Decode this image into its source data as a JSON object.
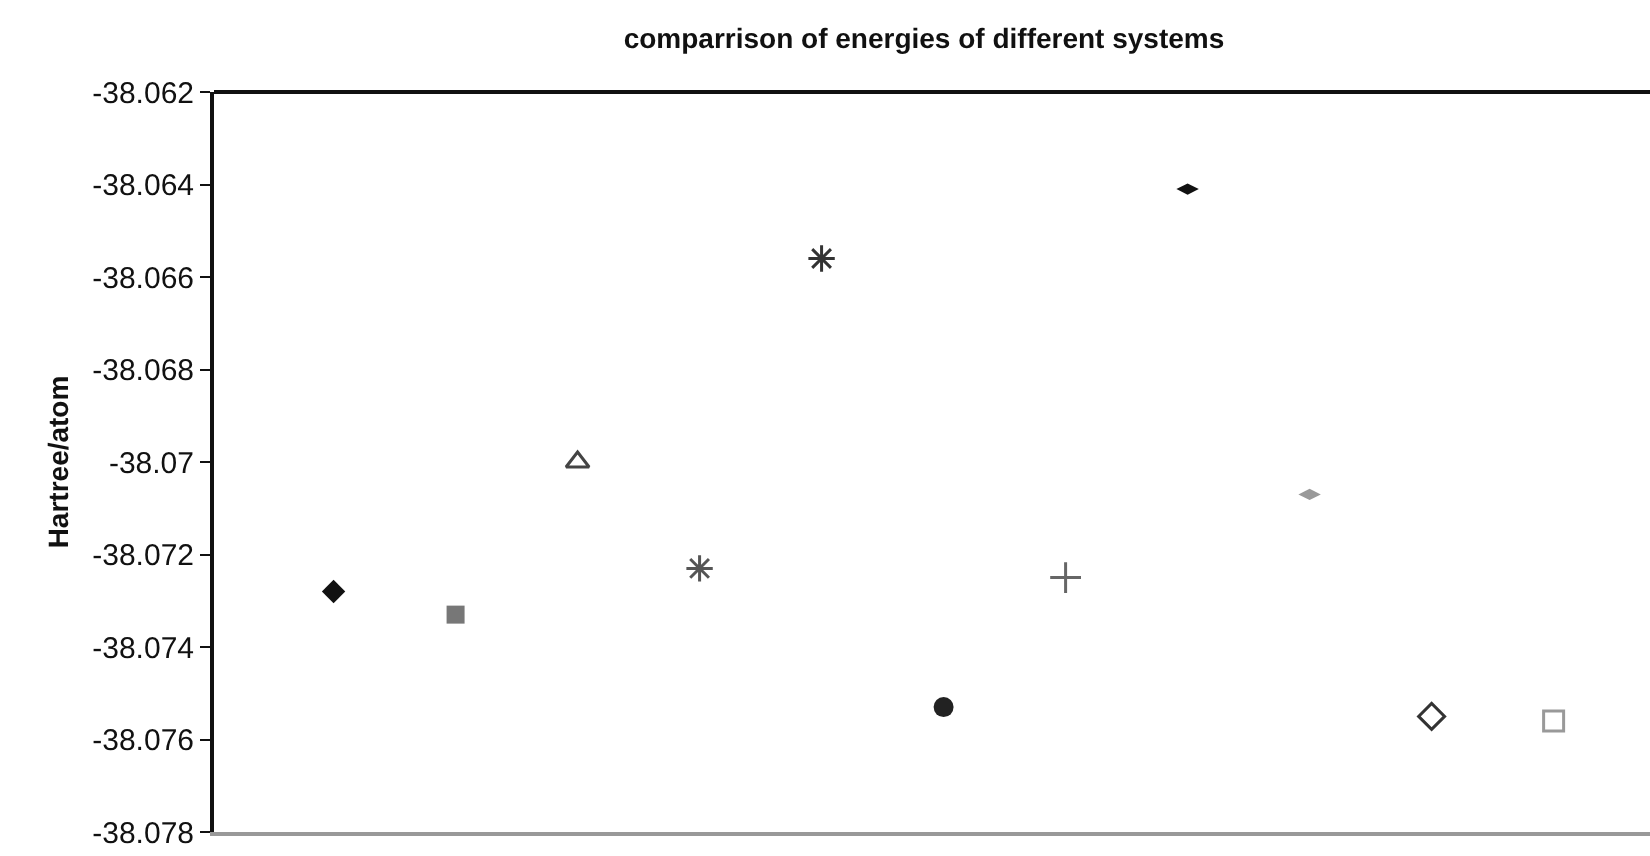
{
  "chart_data": {
    "type": "scatter",
    "title": "comparrison of energies of different systems",
    "ylabel": "Hartree/atom",
    "categories": [
      null,
      null,
      null,
      null,
      null,
      null,
      null,
      null,
      null,
      null,
      null
    ],
    "series": [
      {
        "color": "#111111",
        "marker": "diamond",
        "values": [
          -38.0728,
          null,
          null,
          null,
          null,
          null,
          null,
          null,
          null,
          null,
          null
        ]
      },
      {
        "color": "#777777",
        "marker": "square",
        "values": [
          null,
          -38.0733,
          null,
          null,
          null,
          null,
          null,
          null,
          null,
          null,
          null
        ]
      },
      {
        "color": "#444444",
        "marker": "triangle-open",
        "values": [
          null,
          null,
          -38.07,
          null,
          null,
          null,
          null,
          null,
          null,
          null,
          null
        ]
      },
      {
        "color": "#555555",
        "marker": "cross",
        "values": [
          null,
          null,
          null,
          -38.0723,
          null,
          null,
          null,
          null,
          null,
          null,
          null
        ]
      },
      {
        "color": "#333333",
        "marker": "cross",
        "values": [
          null,
          null,
          null,
          null,
          -38.0656,
          null,
          null,
          null,
          null,
          null,
          null
        ]
      },
      {
        "color": "#222222",
        "marker": "circle",
        "values": [
          null,
          null,
          null,
          null,
          null,
          -38.0753,
          null,
          null,
          null,
          null,
          null
        ]
      },
      {
        "color": "#666666",
        "marker": "cross-thin",
        "values": [
          null,
          null,
          null,
          null,
          null,
          null,
          -38.0725,
          null,
          null,
          null,
          null
        ]
      },
      {
        "color": "#111111",
        "marker": "diamond-flat",
        "values": [
          null,
          null,
          null,
          null,
          null,
          null,
          null,
          -38.0641,
          null,
          null,
          null
        ]
      },
      {
        "color": "#999999",
        "marker": "diamond-flat",
        "values": [
          null,
          null,
          null,
          null,
          null,
          null,
          null,
          null,
          -38.0707,
          null,
          null
        ]
      },
      {
        "color": "#333333",
        "marker": "diamond-open",
        "values": [
          null,
          null,
          null,
          null,
          null,
          null,
          null,
          null,
          null,
          -38.0755,
          null
        ]
      },
      {
        "color": "#999999",
        "marker": "square-open",
        "values": [
          null,
          null,
          null,
          null,
          null,
          null,
          null,
          null,
          null,
          null,
          -38.0756
        ]
      }
    ],
    "ylim": [
      -38.078,
      -38.062
    ],
    "yticks": [
      -38.078,
      -38.076,
      -38.074,
      -38.072,
      -38.07,
      -38.068,
      -38.066,
      -38.064,
      -38.062
    ],
    "tick_labels": "y"
  }
}
